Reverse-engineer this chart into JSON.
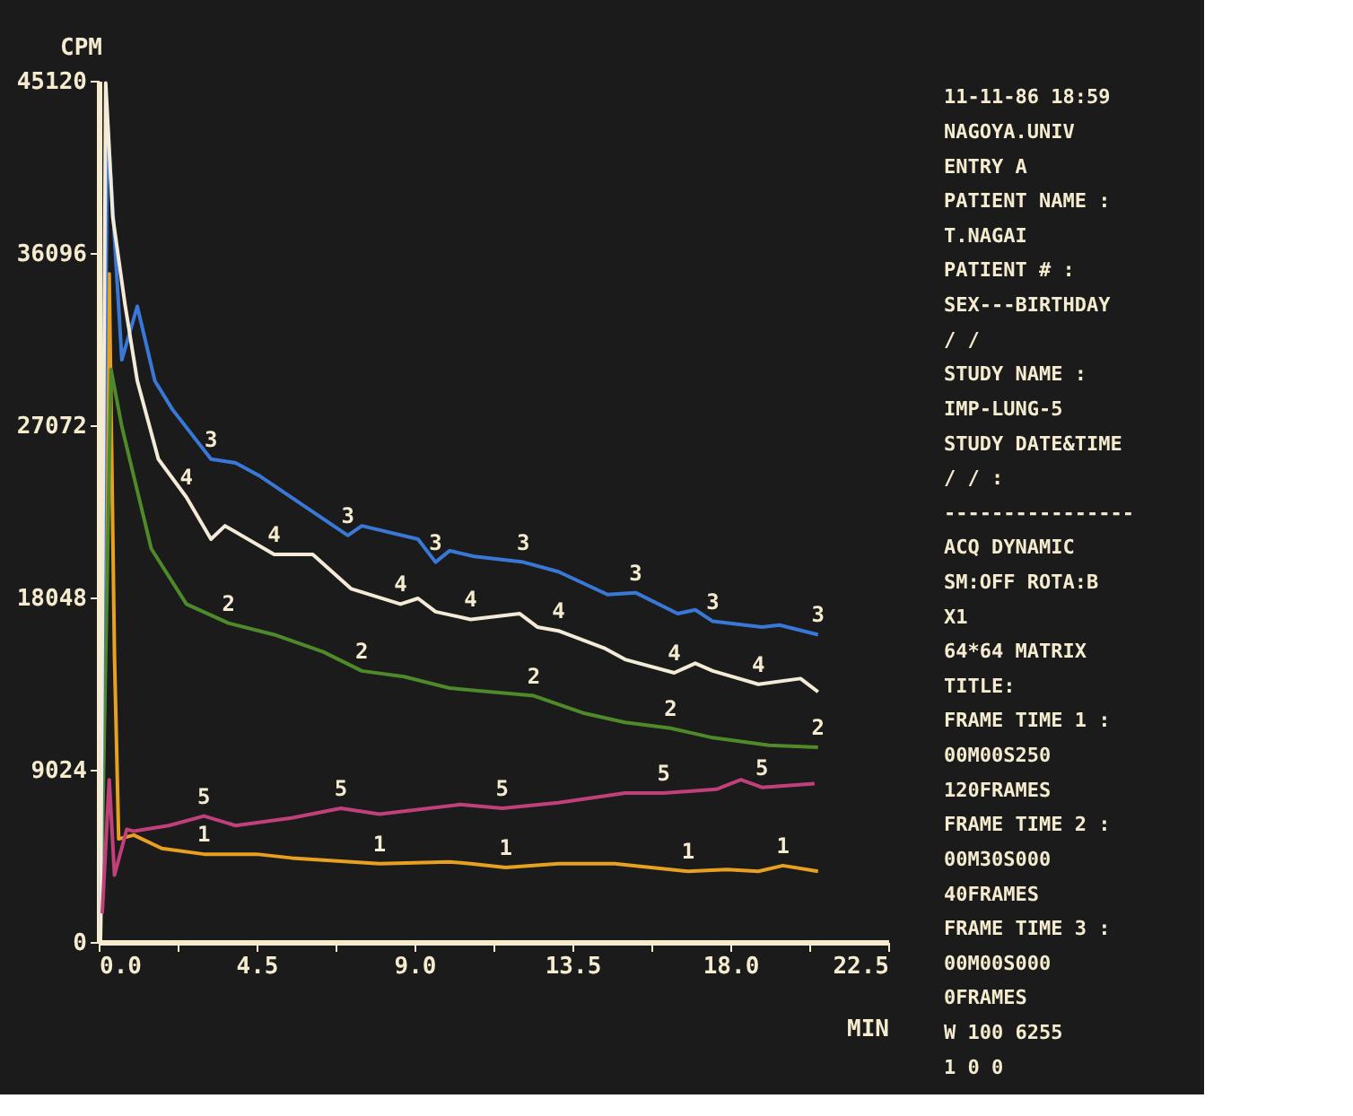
{
  "chart_data": {
    "type": "line",
    "ylabel": "CPM",
    "xlabel": "MIN",
    "xlim": [
      0,
      22.5
    ],
    "ylim": [
      0,
      45120
    ],
    "xticks": [
      {
        "value": 0,
        "label": "0.0"
      },
      {
        "value": 2.25,
        "label": null
      },
      4.5,
      {
        "value": 6.75,
        "label": null
      },
      {
        "value": 9,
        "label": "9.0"
      },
      {
        "value": 11.25,
        "label": null
      },
      13.5,
      {
        "value": 15.75,
        "label": null
      },
      {
        "value": 18,
        "label": "18.0"
      },
      {
        "value": 20.25,
        "label": null
      },
      22.5
    ],
    "yticks": [
      0,
      9024,
      18048,
      27072,
      36096,
      45120
    ],
    "grid": false,
    "legend": false,
    "series": [
      {
        "name": "1",
        "color": "#e8a020",
        "x": [
          0.05,
          0.3,
          0.45,
          0.57,
          1.0,
          1.8,
          3.0,
          4.5,
          5.5,
          8.0,
          10.0,
          10.6,
          11.6,
          13.1,
          14.7,
          16.8,
          17.9,
          18.8,
          19.5,
          20.5
        ],
        "values": [
          0,
          35000,
          15000,
          5400,
          5600,
          4900,
          4600,
          4600,
          4400,
          4100,
          4200,
          4100,
          3900,
          4100,
          4100,
          3700,
          3800,
          3700,
          4000,
          3700
        ]
      },
      {
        "name": "2",
        "color": "#4f8a2a",
        "x": [
          0.05,
          0.35,
          0.66,
          1.0,
          1.5,
          2.5,
          3.7,
          5.0,
          6.4,
          7.5,
          8.7,
          10.0,
          12.4,
          13.8,
          15.0,
          16.3,
          17.5,
          19.1,
          20.5
        ],
        "values": [
          0,
          30000,
          27000,
          24400,
          20600,
          17700,
          16700,
          16100,
          15200,
          14200,
          13900,
          13300,
          12900,
          12000,
          11500,
          11200,
          10700,
          10300,
          10200
        ]
      },
      {
        "name": "3",
        "color": "#3a78d8",
        "x": [
          0.05,
          0.25,
          0.66,
          1.1,
          1.6,
          2.1,
          3.2,
          3.9,
          4.6,
          7.1,
          7.5,
          9.1,
          9.6,
          10.0,
          10.7,
          12.1,
          13.1,
          14.5,
          15.3,
          16.5,
          17.0,
          17.5,
          18.9,
          19.4,
          20.5
        ],
        "values": [
          0,
          43000,
          30500,
          33300,
          29400,
          27900,
          25300,
          25100,
          24400,
          21300,
          21800,
          21100,
          19900,
          20500,
          20200,
          19900,
          19400,
          18200,
          18300,
          17200,
          17400,
          16800,
          16500,
          16600,
          16100
        ]
      },
      {
        "name": "4",
        "color": "#f3ead8",
        "x": [
          0.05,
          0.2,
          0.4,
          0.75,
          1.1,
          1.7,
          2.5,
          3.2,
          3.6,
          5.0,
          6.1,
          7.2,
          8.6,
          9.1,
          9.6,
          10.6,
          12.0,
          12.5,
          13.1,
          14.4,
          15.0,
          16.4,
          17.0,
          17.5,
          18.8,
          20.0,
          20.5
        ],
        "values": [
          0,
          45000,
          38000,
          33400,
          29400,
          25300,
          23300,
          21100,
          21800,
          20300,
          20300,
          18500,
          17700,
          18000,
          17300,
          16900,
          17200,
          16500,
          16300,
          15400,
          14800,
          14100,
          14600,
          14200,
          13500,
          13800,
          13100
        ]
      },
      {
        "name": "5",
        "color": "#c0407a",
        "x": [
          0.1,
          0.3,
          0.45,
          0.8,
          1.0,
          2.0,
          3.0,
          3.9,
          5.5,
          6.9,
          8.0,
          10.3,
          11.5,
          13.1,
          15.0,
          16.1,
          17.6,
          18.3,
          18.9,
          20.4
        ],
        "values": [
          1500,
          8500,
          3500,
          5900,
          5800,
          6100,
          6600,
          6100,
          6500,
          7000,
          6700,
          7200,
          7000,
          7300,
          7800,
          7800,
          8000,
          8500,
          8100,
          8300
        ]
      }
    ],
    "annotations": [
      "11-11-86    18:59",
      "NAGOYA.UNIV",
      "ENTRY A",
      "PATIENT NAME :",
      " T.NAGAI",
      "PATIENT # :",
      "SEX---BIRTHDAY",
      "      /  /",
      "STUDY NAME :",
      " IMP-LUNG-5",
      "STUDY DATE&TIME",
      "  /  /      :",
      "----------------",
      "ACQ DYNAMIC",
      "SM:OFF  ROTA:B",
      "  X1",
      "  64*64 MATRIX",
      "TITLE:",
      "FRAME TIME 1 :",
      "     00M00S250",
      "     120FRAMES",
      "FRAME TIME 2 :",
      "     00M30S000",
      "      40FRAMES",
      "FRAME TIME 3 :",
      "     00M00S000",
      "       0FRAMES",
      "W 100      6255",
      "1   0         0"
    ]
  }
}
